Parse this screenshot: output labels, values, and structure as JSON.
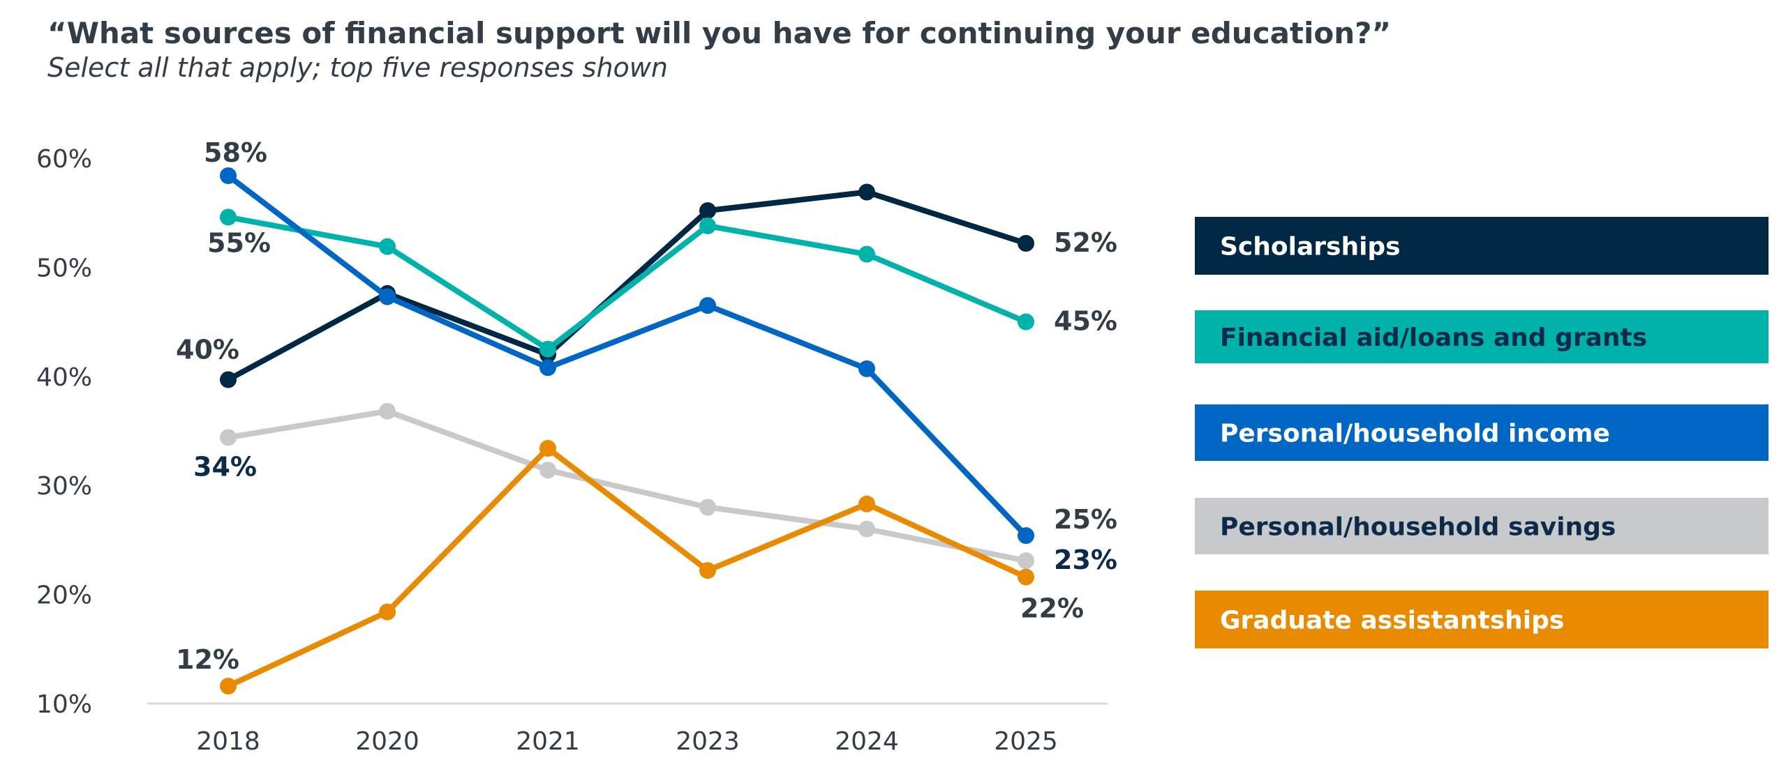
{
  "chart_data": {
    "type": "line",
    "title": "“What sources of financial support will you have for continuing your education?”",
    "subtitle": "Select all that apply; top five responses shown",
    "xlabel": "",
    "ylabel": "",
    "categories": [
      "2018",
      "2020",
      "2021",
      "2023",
      "2024",
      "2025"
    ],
    "ylim": [
      10,
      60
    ],
    "yticks": [
      "10%",
      "20%",
      "30%",
      "40%",
      "50%",
      "60%"
    ],
    "ytick_values": [
      10,
      20,
      30,
      40,
      50,
      60
    ],
    "grid": false,
    "legend_placement": "right",
    "series": [
      {
        "name": "Scholarships",
        "color": "#002744",
        "legend_text_color": "#ffffff",
        "values": [
          39.7,
          47.6,
          42.0,
          55.2,
          56.9,
          52.2
        ],
        "labels": [
          {
            "index": 0,
            "text": "40%"
          },
          {
            "index": 5,
            "text": "52%"
          }
        ]
      },
      {
        "name": "Financial aid/loans and grants",
        "color": "#00b2a9",
        "legend_text_color": "#0c2a4a",
        "values": [
          54.6,
          51.9,
          42.5,
          53.8,
          51.2,
          45.0
        ],
        "labels": [
          {
            "index": 0,
            "text": "55%"
          },
          {
            "index": 5,
            "text": "45%"
          }
        ]
      },
      {
        "name": "Personal/household income",
        "color": "#0066c4",
        "legend_text_color": "#ffffff",
        "values": [
          58.4,
          47.3,
          40.8,
          46.5,
          40.7,
          25.4
        ],
        "labels": [
          {
            "index": 0,
            "text": "58%"
          },
          {
            "index": 5,
            "text": "25%"
          }
        ]
      },
      {
        "name": "Personal/household savings",
        "color": "#c8c9cb",
        "legend_text_color": "#0c2a4a",
        "values": [
          34.4,
          36.8,
          31.4,
          28.0,
          26.0,
          23.1
        ],
        "labels": [
          {
            "index": 0,
            "text": "34%"
          },
          {
            "index": 5,
            "text": "23%"
          }
        ]
      },
      {
        "name": "Graduate assistantships",
        "color": "#e88b00",
        "legend_text_color": "#ffffff",
        "values": [
          11.6,
          18.4,
          33.4,
          22.2,
          28.3,
          21.6
        ],
        "labels": [
          {
            "index": 0,
            "text": "12%"
          },
          {
            "index": 5,
            "text": "22%"
          }
        ]
      }
    ]
  }
}
